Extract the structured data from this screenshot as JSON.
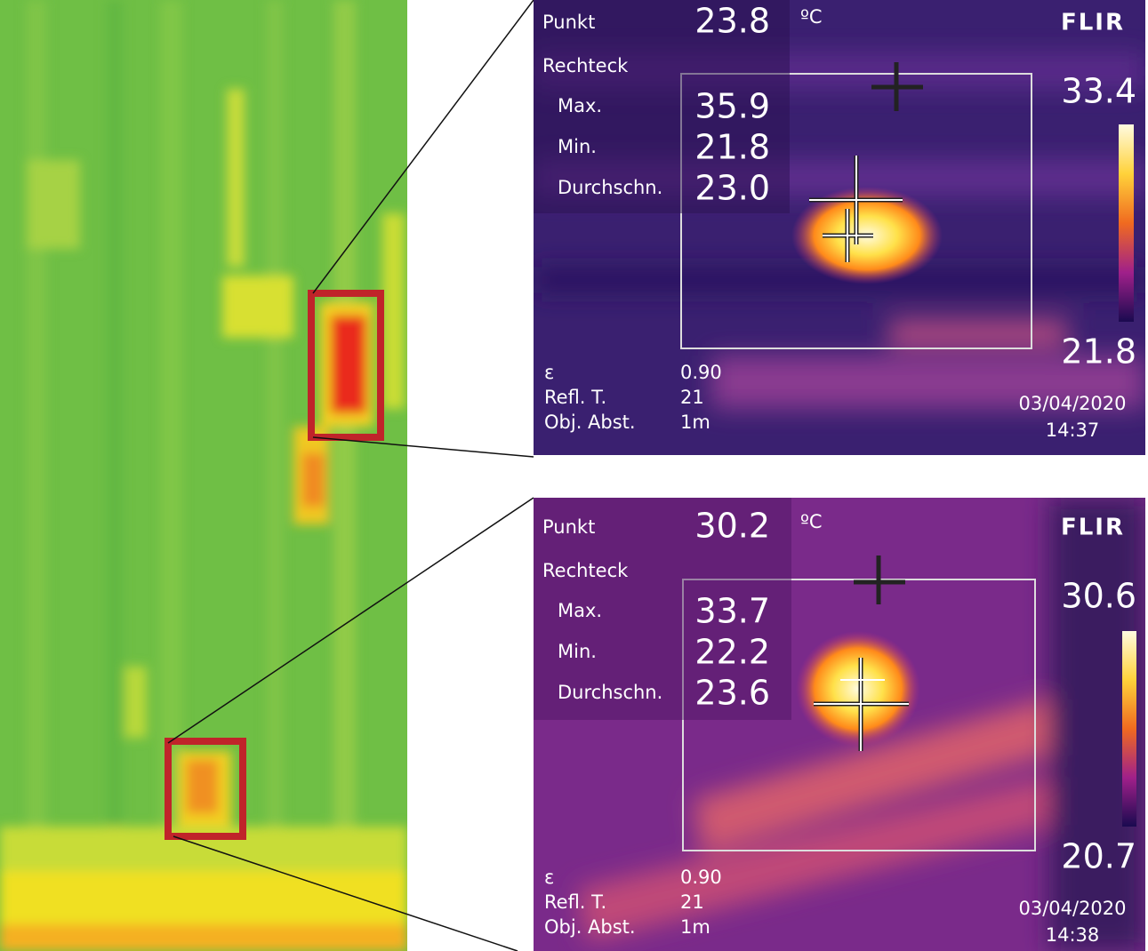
{
  "thermal_images": [
    {
      "point_label": "Punkt",
      "point_value": "23.8",
      "unit": "ºC",
      "brand": "FLIR",
      "rect_label": "Rechteck",
      "stats": [
        {
          "label": "Max.",
          "value": "35.9"
        },
        {
          "label": "Min.",
          "value": "21.8"
        },
        {
          "label": "Durchschn.",
          "value": "23.0"
        }
      ],
      "scale_max": "33.4",
      "scale_min": "21.8",
      "params": [
        {
          "label": "ε",
          "value": "0.90"
        },
        {
          "label": "Refl. T.",
          "value": "21"
        },
        {
          "label": "Obj. Abst.",
          "value": "1m"
        }
      ],
      "date": "03/04/2020",
      "time": "14:37"
    },
    {
      "point_label": "Punkt",
      "point_value": "30.2",
      "unit": "ºC",
      "brand": "FLIR",
      "rect_label": "Rechteck",
      "stats": [
        {
          "label": "Max.",
          "value": "33.7"
        },
        {
          "label": "Min.",
          "value": "22.2"
        },
        {
          "label": "Durchschn.",
          "value": "23.6"
        }
      ],
      "scale_max": "30.6",
      "scale_min": "20.7",
      "params": [
        {
          "label": "ε",
          "value": "0.90"
        },
        {
          "label": "Refl. T.",
          "value": "21"
        },
        {
          "label": "Obj. Abst.",
          "value": "1m"
        }
      ],
      "date": "03/04/2020",
      "time": "14:38"
    }
  ]
}
